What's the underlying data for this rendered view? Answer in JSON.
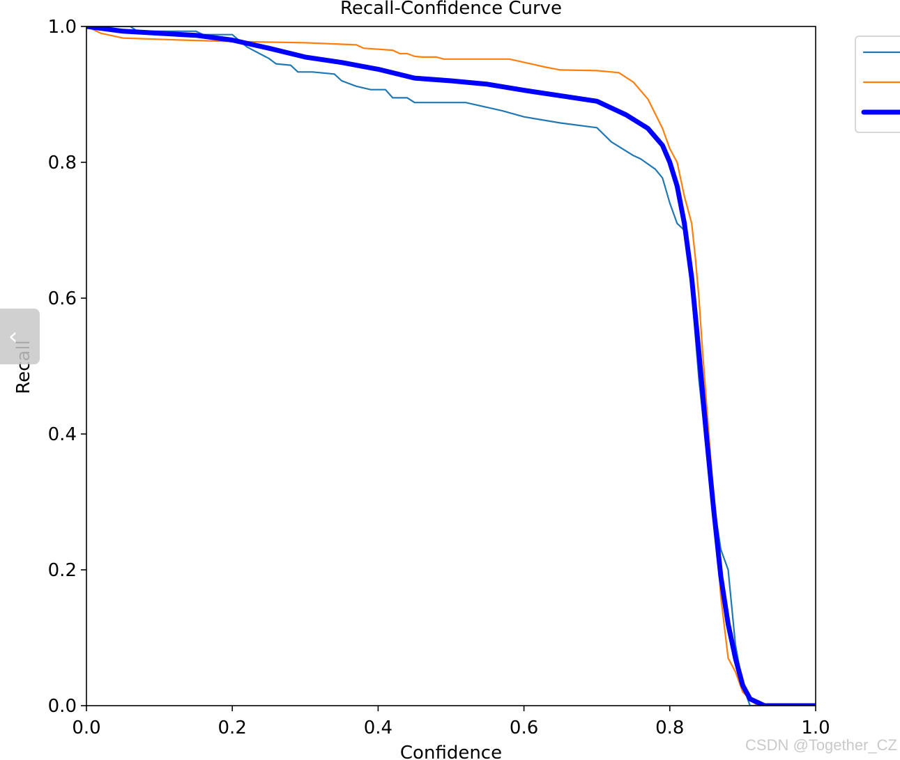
{
  "chart_data": {
    "type": "line",
    "title": "Recall-Confidence Curve",
    "xlabel": "Confidence",
    "ylabel": "Recall",
    "xlim": [
      0.0,
      1.0
    ],
    "ylim": [
      0.0,
      1.0
    ],
    "x_ticks": [
      "0.0",
      "0.2",
      "0.4",
      "0.6",
      "0.8",
      "1.0"
    ],
    "y_ticks": [
      "0.0",
      "0.2",
      "0.4",
      "0.6",
      "0.8",
      "1.0"
    ],
    "grid": false,
    "legend_position": "top-right (partially cut off)",
    "series": [
      {
        "color": "#1f77b4",
        "line_width": "thin",
        "x": [
          0.0,
          0.06,
          0.07,
          0.15,
          0.16,
          0.2,
          0.22,
          0.25,
          0.26,
          0.28,
          0.29,
          0.31,
          0.34,
          0.35,
          0.37,
          0.39,
          0.41,
          0.42,
          0.44,
          0.45,
          0.52,
          0.57,
          0.6,
          0.65,
          0.7,
          0.72,
          0.75,
          0.76,
          0.78,
          0.79,
          0.8,
          0.81,
          0.82,
          0.83,
          0.84,
          0.85,
          0.86,
          0.87,
          0.88,
          0.89,
          0.9,
          0.91,
          1.0
        ],
        "y": [
          1.0,
          1.0,
          0.993,
          0.993,
          0.988,
          0.988,
          0.97,
          0.953,
          0.945,
          0.943,
          0.933,
          0.933,
          0.93,
          0.92,
          0.912,
          0.907,
          0.907,
          0.895,
          0.895,
          0.888,
          0.888,
          0.876,
          0.867,
          0.858,
          0.851,
          0.83,
          0.81,
          0.805,
          0.79,
          0.777,
          0.74,
          0.71,
          0.7,
          0.61,
          0.48,
          0.38,
          0.3,
          0.23,
          0.2,
          0.09,
          0.03,
          0.0,
          0.0
        ]
      },
      {
        "color": "#ff7f0e",
        "line_width": "thin",
        "x": [
          0.0,
          0.02,
          0.05,
          0.13,
          0.2,
          0.3,
          0.37,
          0.38,
          0.42,
          0.43,
          0.44,
          0.45,
          0.46,
          0.48,
          0.49,
          0.5,
          0.58,
          0.63,
          0.65,
          0.7,
          0.73,
          0.75,
          0.77,
          0.79,
          0.8,
          0.81,
          0.82,
          0.83,
          0.835,
          0.84,
          0.845,
          0.85,
          0.855,
          0.86,
          0.87,
          0.88,
          0.89,
          0.9,
          0.92,
          1.0
        ],
        "y": [
          1.0,
          0.99,
          0.983,
          0.98,
          0.978,
          0.976,
          0.973,
          0.968,
          0.965,
          0.96,
          0.96,
          0.956,
          0.955,
          0.955,
          0.952,
          0.952,
          0.952,
          0.94,
          0.936,
          0.935,
          0.932,
          0.918,
          0.893,
          0.85,
          0.82,
          0.8,
          0.75,
          0.71,
          0.66,
          0.6,
          0.52,
          0.45,
          0.38,
          0.31,
          0.16,
          0.07,
          0.05,
          0.02,
          0.0,
          0.0
        ]
      },
      {
        "color": "#0000ff",
        "line_width": "thick",
        "x": [
          0.0,
          0.05,
          0.1,
          0.15,
          0.2,
          0.25,
          0.3,
          0.35,
          0.4,
          0.45,
          0.5,
          0.55,
          0.6,
          0.65,
          0.7,
          0.74,
          0.77,
          0.79,
          0.8,
          0.81,
          0.82,
          0.83,
          0.84,
          0.85,
          0.86,
          0.87,
          0.88,
          0.89,
          0.9,
          0.91,
          0.93,
          1.0
        ],
        "y": [
          1.0,
          0.993,
          0.99,
          0.987,
          0.98,
          0.968,
          0.955,
          0.947,
          0.937,
          0.924,
          0.92,
          0.915,
          0.906,
          0.898,
          0.89,
          0.87,
          0.85,
          0.825,
          0.8,
          0.765,
          0.71,
          0.63,
          0.52,
          0.4,
          0.29,
          0.19,
          0.12,
          0.07,
          0.03,
          0.01,
          0.0,
          0.0
        ]
      }
    ]
  },
  "watermark": "CSDN @Together_CZ",
  "nav": {
    "back_glyph": "‹"
  }
}
